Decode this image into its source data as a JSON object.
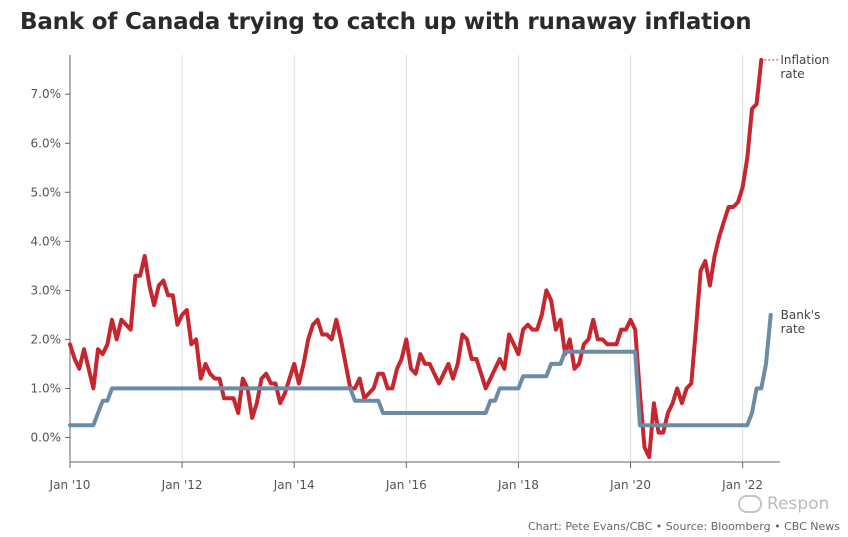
{
  "title": "Bank of Canada trying to catch up with runaway inflation",
  "source": "Chart: Pete Evans/CBC • Source: Bloomberg • CBC News",
  "watermark": {
    "text": "Respon",
    "icon": "chat-bubble-icon"
  },
  "chart_data": {
    "type": "line",
    "title": "Bank of Canada trying to catch up with runaway inflation",
    "xlabel": "",
    "ylabel": "",
    "ylim": [
      -0.5,
      7.8
    ],
    "xlim": [
      "2010-01",
      "2022-09"
    ],
    "grid": {
      "vertical": true,
      "horizontal": false
    },
    "y_ticks": [
      "0.0%",
      "1.0%",
      "2.0%",
      "3.0%",
      "4.0%",
      "5.0%",
      "6.0%",
      "7.0%"
    ],
    "y_tick_values": [
      0,
      1,
      2,
      3,
      4,
      5,
      6,
      7
    ],
    "x_ticks": [
      "Jan '10",
      "Jan '12",
      "Jan '14",
      "Jan '16",
      "Jan '18",
      "Jan '20",
      "Jan '22"
    ],
    "x_tick_values": [
      "2010-01",
      "2012-01",
      "2014-01",
      "2016-01",
      "2018-01",
      "2020-01",
      "2022-01"
    ],
    "legend_placement": "right, at line ends",
    "series": [
      {
        "name": "Inflation rate",
        "color": "#c8262e",
        "points": [
          [
            "2010-01",
            1.9
          ],
          [
            "2010-02",
            1.6
          ],
          [
            "2010-03",
            1.4
          ],
          [
            "2010-04",
            1.8
          ],
          [
            "2010-05",
            1.4
          ],
          [
            "2010-06",
            1.0
          ],
          [
            "2010-07",
            1.8
          ],
          [
            "2010-08",
            1.7
          ],
          [
            "2010-09",
            1.9
          ],
          [
            "2010-10",
            2.4
          ],
          [
            "2010-11",
            2.0
          ],
          [
            "2010-12",
            2.4
          ],
          [
            "2011-01",
            2.3
          ],
          [
            "2011-02",
            2.2
          ],
          [
            "2011-03",
            3.3
          ],
          [
            "2011-04",
            3.3
          ],
          [
            "2011-05",
            3.7
          ],
          [
            "2011-06",
            3.1
          ],
          [
            "2011-07",
            2.7
          ],
          [
            "2011-08",
            3.1
          ],
          [
            "2011-09",
            3.2
          ],
          [
            "2011-10",
            2.9
          ],
          [
            "2011-11",
            2.9
          ],
          [
            "2011-12",
            2.3
          ],
          [
            "2012-01",
            2.5
          ],
          [
            "2012-02",
            2.6
          ],
          [
            "2012-03",
            1.9
          ],
          [
            "2012-04",
            2.0
          ],
          [
            "2012-05",
            1.2
          ],
          [
            "2012-06",
            1.5
          ],
          [
            "2012-07",
            1.3
          ],
          [
            "2012-08",
            1.2
          ],
          [
            "2012-09",
            1.2
          ],
          [
            "2012-10",
            0.8
          ],
          [
            "2012-11",
            0.8
          ],
          [
            "2012-12",
            0.8
          ],
          [
            "2013-01",
            0.5
          ],
          [
            "2013-02",
            1.2
          ],
          [
            "2013-03",
            1.0
          ],
          [
            "2013-04",
            0.4
          ],
          [
            "2013-05",
            0.7
          ],
          [
            "2013-06",
            1.2
          ],
          [
            "2013-07",
            1.3
          ],
          [
            "2013-08",
            1.1
          ],
          [
            "2013-09",
            1.1
          ],
          [
            "2013-10",
            0.7
          ],
          [
            "2013-11",
            0.9
          ],
          [
            "2013-12",
            1.2
          ],
          [
            "2014-01",
            1.5
          ],
          [
            "2014-02",
            1.1
          ],
          [
            "2014-03",
            1.5
          ],
          [
            "2014-04",
            2.0
          ],
          [
            "2014-05",
            2.3
          ],
          [
            "2014-06",
            2.4
          ],
          [
            "2014-07",
            2.1
          ],
          [
            "2014-08",
            2.1
          ],
          [
            "2014-09",
            2.0
          ],
          [
            "2014-10",
            2.4
          ],
          [
            "2014-11",
            2.0
          ],
          [
            "2014-12",
            1.5
          ],
          [
            "2015-01",
            1.0
          ],
          [
            "2015-02",
            1.0
          ],
          [
            "2015-03",
            1.2
          ],
          [
            "2015-04",
            0.8
          ],
          [
            "2015-05",
            0.9
          ],
          [
            "2015-06",
            1.0
          ],
          [
            "2015-07",
            1.3
          ],
          [
            "2015-08",
            1.3
          ],
          [
            "2015-09",
            1.0
          ],
          [
            "2015-10",
            1.0
          ],
          [
            "2015-11",
            1.4
          ],
          [
            "2015-12",
            1.6
          ],
          [
            "2016-01",
            2.0
          ],
          [
            "2016-02",
            1.4
          ],
          [
            "2016-03",
            1.3
          ],
          [
            "2016-04",
            1.7
          ],
          [
            "2016-05",
            1.5
          ],
          [
            "2016-06",
            1.5
          ],
          [
            "2016-07",
            1.3
          ],
          [
            "2016-08",
            1.1
          ],
          [
            "2016-09",
            1.3
          ],
          [
            "2016-10",
            1.5
          ],
          [
            "2016-11",
            1.2
          ],
          [
            "2016-12",
            1.5
          ],
          [
            "2017-01",
            2.1
          ],
          [
            "2017-02",
            2.0
          ],
          [
            "2017-03",
            1.6
          ],
          [
            "2017-04",
            1.6
          ],
          [
            "2017-05",
            1.3
          ],
          [
            "2017-06",
            1.0
          ],
          [
            "2017-07",
            1.2
          ],
          [
            "2017-08",
            1.4
          ],
          [
            "2017-09",
            1.6
          ],
          [
            "2017-10",
            1.4
          ],
          [
            "2017-11",
            2.1
          ],
          [
            "2017-12",
            1.9
          ],
          [
            "2018-01",
            1.7
          ],
          [
            "2018-02",
            2.2
          ],
          [
            "2018-03",
            2.3
          ],
          [
            "2018-04",
            2.2
          ],
          [
            "2018-05",
            2.2
          ],
          [
            "2018-06",
            2.5
          ],
          [
            "2018-07",
            3.0
          ],
          [
            "2018-08",
            2.8
          ],
          [
            "2018-09",
            2.2
          ],
          [
            "2018-10",
            2.4
          ],
          [
            "2018-11",
            1.7
          ],
          [
            "2018-12",
            2.0
          ],
          [
            "2019-01",
            1.4
          ],
          [
            "2019-02",
            1.5
          ],
          [
            "2019-03",
            1.9
          ],
          [
            "2019-04",
            2.0
          ],
          [
            "2019-05",
            2.4
          ],
          [
            "2019-06",
            2.0
          ],
          [
            "2019-07",
            2.0
          ],
          [
            "2019-08",
            1.9
          ],
          [
            "2019-09",
            1.9
          ],
          [
            "2019-10",
            1.9
          ],
          [
            "2019-11",
            2.2
          ],
          [
            "2019-12",
            2.2
          ],
          [
            "2020-01",
            2.4
          ],
          [
            "2020-02",
            2.2
          ],
          [
            "2020-03",
            0.9
          ],
          [
            "2020-04",
            -0.2
          ],
          [
            "2020-05",
            -0.4
          ],
          [
            "2020-06",
            0.7
          ],
          [
            "2020-07",
            0.1
          ],
          [
            "2020-08",
            0.1
          ],
          [
            "2020-09",
            0.5
          ],
          [
            "2020-10",
            0.7
          ],
          [
            "2020-11",
            1.0
          ],
          [
            "2020-12",
            0.7
          ],
          [
            "2021-01",
            1.0
          ],
          [
            "2021-02",
            1.1
          ],
          [
            "2021-03",
            2.2
          ],
          [
            "2021-04",
            3.4
          ],
          [
            "2021-05",
            3.6
          ],
          [
            "2021-06",
            3.1
          ],
          [
            "2021-07",
            3.7
          ],
          [
            "2021-08",
            4.1
          ],
          [
            "2021-09",
            4.4
          ],
          [
            "2021-10",
            4.7
          ],
          [
            "2021-11",
            4.7
          ],
          [
            "2021-12",
            4.8
          ],
          [
            "2022-01",
            5.1
          ],
          [
            "2022-02",
            5.7
          ],
          [
            "2022-03",
            6.7
          ],
          [
            "2022-04",
            6.8
          ],
          [
            "2022-05",
            7.7
          ]
        ]
      },
      {
        "name": "Bank's rate",
        "color": "#6b8ca4",
        "points": [
          [
            "2010-01",
            0.25
          ],
          [
            "2010-06",
            0.25
          ],
          [
            "2010-07",
            0.5
          ],
          [
            "2010-08",
            0.75
          ],
          [
            "2010-09",
            0.75
          ],
          [
            "2010-10",
            1.0
          ],
          [
            "2015-01",
            1.0
          ],
          [
            "2015-02",
            0.75
          ],
          [
            "2015-07",
            0.75
          ],
          [
            "2015-08",
            0.5
          ],
          [
            "2017-06",
            0.5
          ],
          [
            "2017-07",
            0.75
          ],
          [
            "2017-08",
            0.75
          ],
          [
            "2017-09",
            1.0
          ],
          [
            "2018-01",
            1.0
          ],
          [
            "2018-02",
            1.25
          ],
          [
            "2018-07",
            1.25
          ],
          [
            "2018-08",
            1.5
          ],
          [
            "2018-10",
            1.5
          ],
          [
            "2018-11",
            1.75
          ],
          [
            "2020-02",
            1.75
          ],
          [
            "2020-03",
            0.25
          ],
          [
            "2022-02",
            0.25
          ],
          [
            "2022-03",
            0.5
          ],
          [
            "2022-04",
            1.0
          ],
          [
            "2022-05",
            1.0
          ],
          [
            "2022-06",
            1.5
          ],
          [
            "2022-07",
            2.5
          ]
        ]
      }
    ]
  }
}
